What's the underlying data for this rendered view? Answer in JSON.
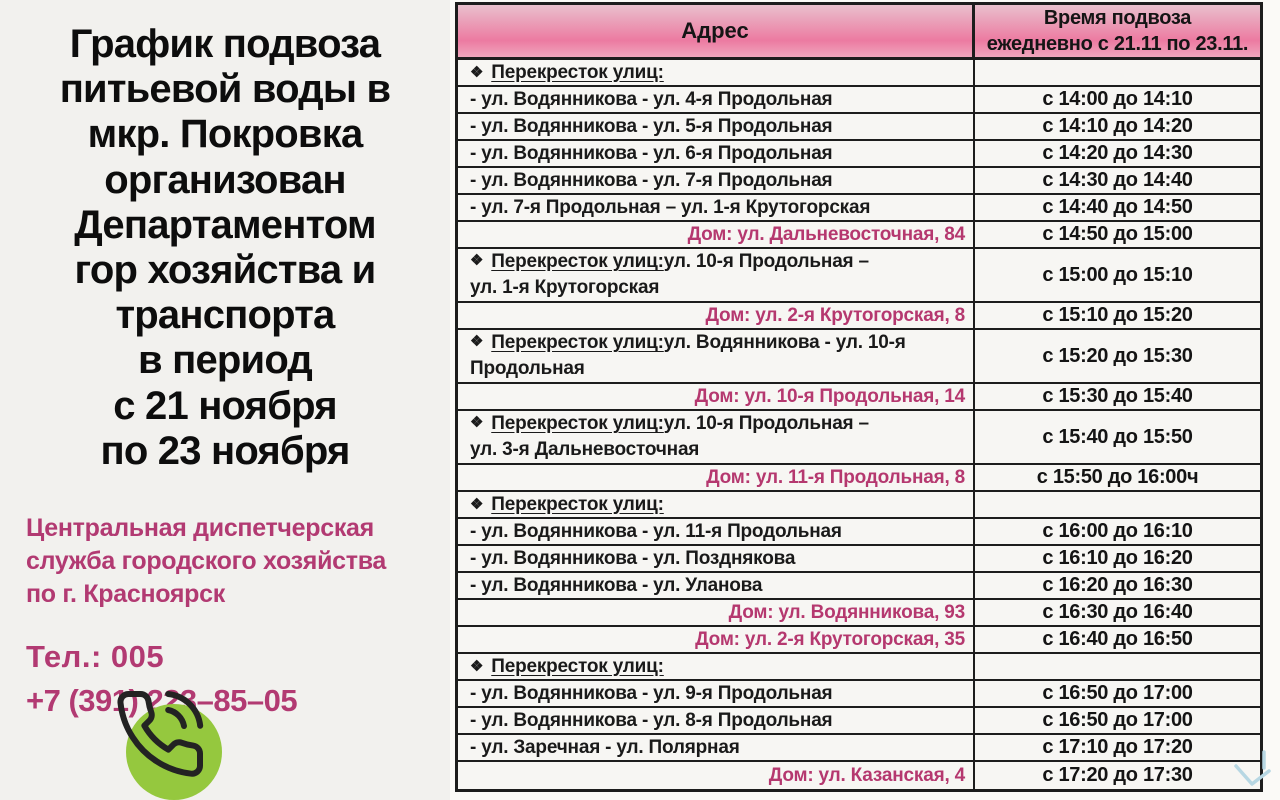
{
  "left_panel": {
    "title": "График подвоза\nпитьевой воды в\nмкр. Покровка\nорганизован\nДепартаментом\nгор хозяйства и\nтранспорта\nв период\nс 21 ноября\nпо 23 ноября",
    "dispatch_service": "Центральная диспетчерская\nслужба городского хозяйства\nпо г. Красноярск",
    "phone_label": "Тел.:  005",
    "phone_number": "+7 (391) 223–85–05",
    "phone_icon": "phone-call-icon",
    "phone_circle_color": "#95c83e",
    "accent_text_color": "#b23a72"
  },
  "table": {
    "header": {
      "address": "Адрес",
      "time": "Время подвоза\nежедневно с 21.11 по 23.11."
    },
    "header_gradient": [
      "#e9c0cd",
      "#ec7aa1",
      "#f0a6bd"
    ],
    "section_bullet": "❖",
    "house_text_color": "#b5386f",
    "rows": [
      {
        "kind": "section",
        "label": "Перекресток улиц:",
        "rest": "",
        "line2": "",
        "time": ""
      },
      {
        "kind": "street",
        "text": "- ул. Водянникова - ул. 4-я Продольная",
        "time": "с 14:00 до 14:10"
      },
      {
        "kind": "street",
        "text": "- ул. Водянникова - ул. 5-я Продольная",
        "time": "с 14:10 до 14:20"
      },
      {
        "kind": "street",
        "text": "- ул. Водянникова - ул. 6-я Продольная",
        "time": "с 14:20 до 14:30"
      },
      {
        "kind": "street",
        "text": "- ул. Водянникова - ул. 7-я Продольная",
        "time": "с 14:30 до 14:40"
      },
      {
        "kind": "street",
        "text": "- ул. 7-я Продольная – ул. 1-я Крутогорская",
        "time": "с 14:40 до 14:50"
      },
      {
        "kind": "house",
        "text": "Дом: ул. Дальневосточная, 84",
        "time": "с 14:50 до 15:00"
      },
      {
        "kind": "section",
        "label": "Перекресток улиц:",
        "rest": " ул. 10-я Продольная –",
        "line2": "ул. 1-я Крутогорская",
        "time": "с 15:00 до 15:10"
      },
      {
        "kind": "house",
        "text": "Дом:  ул. 2-я Крутогорская, 8",
        "time": "с 15:10 до 15:20"
      },
      {
        "kind": "section",
        "label": "Перекресток улиц:",
        "rest": " ул. Водянникова - ул. 10-я",
        "line2": "Продольная",
        "time": "с 15:20 до 15:30"
      },
      {
        "kind": "house",
        "text": "Дом: ул. 10-я Продольная, 14",
        "time": "с 15:30 до 15:40"
      },
      {
        "kind": "section",
        "label": "Перекресток улиц:",
        "rest": " ул. 10-я Продольная –",
        "line2": "ул. 3-я Дальневосточная",
        "time": "с 15:40 до 15:50"
      },
      {
        "kind": "house",
        "text": "Дом: ул. 11-я Продольная, 8",
        "time": "с 15:50 до 16:00ч"
      },
      {
        "kind": "section",
        "label": "Перекресток улиц:",
        "rest": "",
        "line2": "",
        "time": ""
      },
      {
        "kind": "street",
        "text": "- ул. Водянникова - ул. 11-я Продольная",
        "time": "с 16:00 до 16:10"
      },
      {
        "kind": "street",
        "text": "- ул. Водянникова - ул. Позднякова",
        "time": "с 16:10 до 16:20"
      },
      {
        "kind": "street",
        "text": "- ул. Водянникова - ул. Уланова",
        "time": "с 16:20 до 16:30"
      },
      {
        "kind": "house",
        "text": "Дом: ул. Водянникова, 93",
        "time": "с 16:30 до 16:40"
      },
      {
        "kind": "house",
        "text": "Дом:  ул. 2-я Крутогорская, 35",
        "time": "с 16:40 до 16:50"
      },
      {
        "kind": "section",
        "label": "Перекресток улиц:",
        "rest": "",
        "line2": "",
        "time": ""
      },
      {
        "kind": "street",
        "text": "- ул. Водянникова - ул. 9-я Продольная",
        "time": "с 16:50 до 17:00"
      },
      {
        "kind": "street",
        "text": "- ул. Водянникова - ул. 8-я Продольная",
        "time": "с 16:50 до 17:00"
      },
      {
        "kind": "street",
        "text": "- ул. Заречная - ул. Полярная",
        "time": "с 17:10 до 17:20"
      },
      {
        "kind": "house",
        "text": "Дом: ул. Казанская, 4",
        "time": "с 17:20 до 17:30"
      }
    ]
  },
  "misc": {
    "scroll_arrow_icon": "chevron-down-arrow",
    "scroll_arrow_color": "#b7d7e3"
  }
}
